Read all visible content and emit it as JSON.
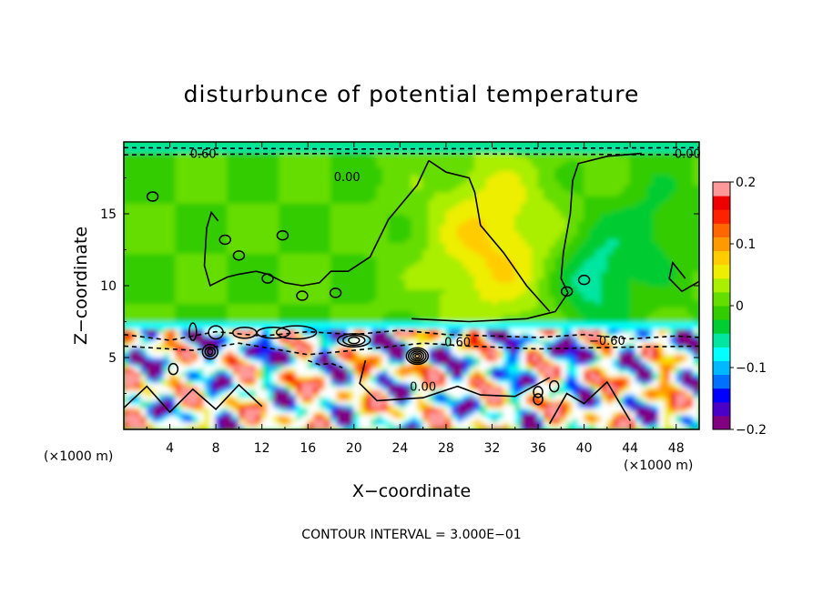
{
  "chart_data": {
    "type": "heatmap",
    "title": "disturbunce of potential temperature",
    "xlabel": "X−coordinate",
    "ylabel": "Z−coordinate",
    "x_unit": "(×1000 m)",
    "y_unit": "(×1000 m)",
    "xlim": [
      0,
      50
    ],
    "ylim": [
      0,
      20
    ],
    "x_ticks": [
      4,
      8,
      12,
      16,
      20,
      24,
      28,
      32,
      36,
      40,
      44,
      48
    ],
    "y_ticks": [
      5,
      10,
      15
    ],
    "colorbar": {
      "min": -0.2,
      "max": 0.2,
      "ticks": [
        "0.2",
        "0.1",
        "0",
        "−0.1",
        "−0.2"
      ],
      "tick_values": [
        0.2,
        0.1,
        0,
        -0.1,
        -0.2
      ],
      "colors": [
        "#800080",
        "#4b00c8",
        "#0000ff",
        "#0070ff",
        "#00b8ff",
        "#00ffff",
        "#00e6a0",
        "#00cc33",
        "#33cc00",
        "#66dd00",
        "#aaee00",
        "#eeee00",
        "#ffcc00",
        "#ff9900",
        "#ff6600",
        "#ff2200",
        "#ee0000",
        "#ff9999"
      ]
    },
    "contour_labels": [
      "0.60",
      "0.00",
      "0.00",
      "0.00",
      "−0.60",
      "0.60"
    ],
    "contour_interval": "CONTOUR INTERVAL = 3.000E−01",
    "fields": {
      "upper_mean": 0.0,
      "warm_column": {
        "x_range": [
          25,
          39
        ],
        "z_range": [
          9,
          19
        ],
        "value": 0.07
      },
      "cool_patches": [
        {
          "x": 41,
          "z": 10.5,
          "value": -0.06
        },
        {
          "x": 46,
          "z": 14,
          "value": -0.03
        }
      ],
      "tropopause_band_z": [
        6.8,
        7.4
      ],
      "lower_layer_z": [
        0,
        7
      ]
    }
  }
}
